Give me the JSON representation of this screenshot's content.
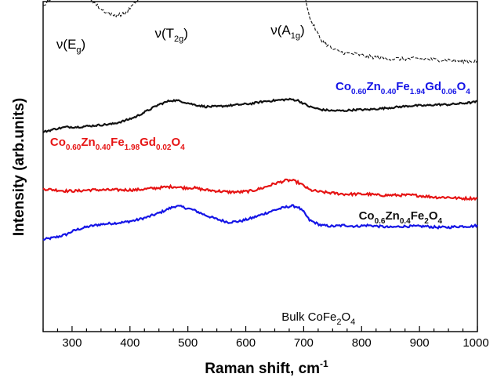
{
  "chart_data": {
    "type": "line",
    "xlabel": "Raman shift, cm",
    "xlabel_sup": "-1",
    "ylabel": "Intensity (arb.units)",
    "xlim": [
      250,
      1000
    ],
    "xticks": [
      300,
      400,
      500,
      600,
      700,
      800,
      900,
      1000
    ],
    "yticks_shown": false,
    "y_units": "arbitrary (stacked, offset)",
    "x_grid": [
      250,
      270,
      290,
      300,
      310,
      330,
      350,
      370,
      390,
      410,
      430,
      450,
      470,
      480,
      490,
      510,
      530,
      550,
      570,
      590,
      610,
      630,
      650,
      670,
      680,
      690,
      700,
      710,
      730,
      750,
      770,
      790,
      810,
      830,
      850,
      870,
      890,
      910,
      930,
      950,
      970,
      990,
      1000
    ],
    "peak_labels": [
      {
        "text": "ν(E",
        "sub": "g",
        "close": ")",
        "x": 300
      },
      {
        "text": "ν(T",
        "sub": "2g",
        "close": ")",
        "x": 470
      },
      {
        "text": "ν(A",
        "sub": "1g",
        "close": ")",
        "x": 670
      }
    ],
    "series": [
      {
        "label_parts": [
          {
            "t": "Co",
            "s": "0.60"
          },
          {
            "t": "Zn",
            "s": "0.40"
          },
          {
            "t": "Fe",
            "s": "1.94"
          },
          {
            "t": "Gd",
            "s": "0.06"
          },
          {
            "t": "O",
            "s": "4"
          }
        ],
        "color": "#1414e6",
        "dash": "solid",
        "label_x": 755,
        "y": [
          38,
          40,
          43,
          46,
          48,
          51,
          53,
          54,
          55,
          57,
          60,
          64,
          69,
          71,
          70,
          67,
          62,
          58,
          55,
          56,
          59,
          63,
          67,
          70,
          71,
          70,
          65,
          57,
          52,
          51,
          52,
          51,
          52,
          51,
          50,
          51,
          51,
          51,
          50,
          50,
          51,
          51,
          52
        ]
      },
      {
        "label_parts": [
          {
            "t": "Co",
            "s": "0.60"
          },
          {
            "t": "Zn",
            "s": "0.40"
          },
          {
            "t": "Fe",
            "s": "1.98"
          },
          {
            "t": "Gd",
            "s": "0.02"
          },
          {
            "t": "O",
            "s": "4"
          }
        ],
        "color": "#e61414",
        "dash": "solid",
        "label_x": 262,
        "y": [
          46,
          45,
          44,
          44,
          44,
          45,
          45,
          45,
          45,
          45,
          46,
          47,
          48,
          48,
          47,
          47,
          45,
          44,
          43,
          43,
          44,
          47,
          51,
          54,
          54,
          52,
          49,
          45,
          43,
          42,
          41,
          41,
          41,
          40,
          40,
          40,
          40,
          39,
          38,
          38,
          37,
          37,
          37
        ]
      },
      {
        "label_parts": [
          {
            "t": "Co",
            "s": "0.6"
          },
          {
            "t": "Zn",
            "s": "0.4"
          },
          {
            "t": "Fe",
            "s": ""
          },
          {
            "t": "O",
            "s": "4"
          }
        ],
        "label_subs_override": [
          "0.6",
          "0.4",
          "2",
          "4"
        ],
        "color": "#111111",
        "dash": "solid",
        "label_x": 795,
        "y": [
          25,
          28,
          30,
          30,
          30,
          31,
          32,
          33,
          36,
          40,
          46,
          52,
          56,
          56,
          55,
          52,
          50,
          50,
          51,
          52,
          53,
          55,
          56,
          57,
          57,
          56,
          53,
          50,
          47,
          46,
          46,
          47,
          47,
          48,
          49,
          50,
          51,
          51,
          52,
          52,
          53,
          54,
          55
        ]
      },
      {
        "label_parts": [
          {
            "t": "Bulk CoFe",
            "s": "2"
          },
          {
            "t": "O",
            "s": "4"
          }
        ],
        "color": "#111111",
        "dash": "dashed",
        "label_x": 662,
        "label_plain": true,
        "y": [
          55,
          65,
          78,
          83,
          76,
          62,
          52,
          47,
          48,
          58,
          68,
          76,
          85,
          90,
          83,
          68,
          64,
          70,
          72,
          73,
          74,
          70,
          72,
          82,
          88,
          86,
          70,
          45,
          26,
          18,
          15,
          14,
          12,
          11,
          10,
          10,
          10,
          10,
          9,
          9,
          8,
          8,
          8
        ]
      }
    ],
    "series_offsets_y": [
      355,
      303,
      201,
      90
    ],
    "series_scale": [
      1.3,
      1.35,
      1.3,
      1.5
    ]
  }
}
